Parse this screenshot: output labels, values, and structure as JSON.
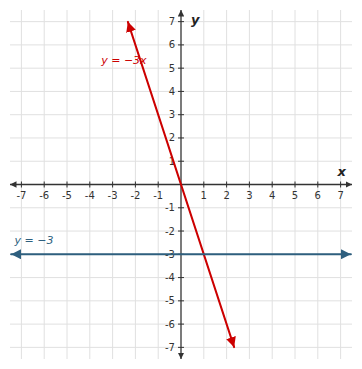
{
  "chart_data": {
    "type": "line",
    "xlabel": "x",
    "ylabel": "y",
    "xlim": [
      -7.5,
      7.5
    ],
    "ylim": [
      -7.5,
      7.5
    ],
    "xticks": [
      -7,
      -6,
      -5,
      -4,
      -3,
      -2,
      -1,
      1,
      2,
      3,
      4,
      5,
      6,
      7
    ],
    "yticks": [
      -7,
      -6,
      -5,
      -4,
      -3,
      -2,
      -1,
      1,
      2,
      3,
      4,
      5,
      6,
      7
    ],
    "grid": true,
    "series": [
      {
        "name": "y = −3x",
        "color": "#cc0000",
        "x": [
          -2.33,
          2.33
        ],
        "values": [
          6.99,
          -6.99
        ]
      },
      {
        "name": "y = −3",
        "color": "#2e5f7e",
        "x": [
          -7.45,
          7.45
        ],
        "values": [
          -3,
          -3
        ]
      }
    ]
  }
}
